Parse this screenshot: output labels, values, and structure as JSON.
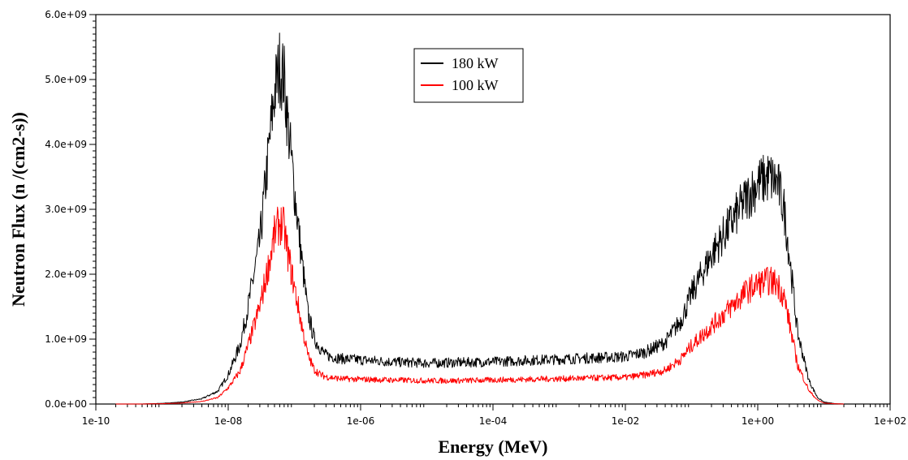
{
  "chart_data": {
    "type": "line",
    "title": "",
    "xlabel": "Energy (MeV)",
    "ylabel": "Neutron Flux (n /(cm2-s))",
    "x_scale": "log",
    "xlim": [
      1e-10,
      100
    ],
    "ylim": [
      0,
      6000000000
    ],
    "x_ticks": [
      {
        "value": 1e-10,
        "label": "1e-10"
      },
      {
        "value": 1e-08,
        "label": "1e-08"
      },
      {
        "value": 1e-06,
        "label": "1e-06"
      },
      {
        "value": 0.0001,
        "label": "1e-04"
      },
      {
        "value": 0.01,
        "label": "1e-02"
      },
      {
        "value": 1,
        "label": "1e+00"
      },
      {
        "value": 100,
        "label": "1e+02"
      }
    ],
    "y_ticks": [
      {
        "value": 0,
        "label": "0.0e+00"
      },
      {
        "value": 1000000000,
        "label": "1.0e+09"
      },
      {
        "value": 2000000000,
        "label": "2.0e+09"
      },
      {
        "value": 3000000000,
        "label": "3.0e+09"
      },
      {
        "value": 4000000000,
        "label": "4.0e+09"
      },
      {
        "value": 5000000000,
        "label": "5.0e+09"
      },
      {
        "value": 6000000000,
        "label": "6.0e+09"
      }
    ],
    "grid": false,
    "legend_position": "top-center",
    "series": [
      {
        "name": "180 kW",
        "color": "#000000",
        "x": [
          2e-10,
          5e-10,
          1e-09,
          2e-09,
          4e-09,
          7e-09,
          1e-08,
          1.5e-08,
          2e-08,
          3e-08,
          4e-08,
          5e-08,
          6e-08,
          7e-08,
          8e-08,
          1e-07,
          1.3e-07,
          1.6e-07,
          2e-07,
          2.5e-07,
          3e-07,
          5e-07,
          1e-06,
          3e-06,
          1e-05,
          3e-05,
          0.0001,
          0.0003,
          0.001,
          0.003,
          0.01,
          0.02,
          0.04,
          0.07,
          0.1,
          0.2,
          0.4,
          0.7,
          1,
          1.5,
          2,
          2.5,
          3,
          4,
          6,
          8,
          10,
          15,
          20
        ],
        "y": [
          0,
          0,
          10000000,
          30000000,
          80000000,
          200000000,
          450000000,
          900000000,
          1500000000,
          2500000000,
          3800000000,
          4800000000,
          5200000000,
          5000000000,
          4300000000,
          3300000000,
          2200000000,
          1400000000,
          1000000000,
          850000000,
          750000000,
          700000000,
          680000000,
          650000000,
          630000000,
          640000000,
          650000000,
          670000000,
          690000000,
          710000000,
          730000000,
          800000000,
          950000000,
          1300000000,
          1700000000,
          2300000000,
          2800000000,
          3200000000,
          3400000000,
          3500000000,
          3400000000,
          3000000000,
          2300000000,
          1100000000,
          350000000,
          100000000,
          30000000,
          5000000,
          0
        ]
      },
      {
        "name": "100 kW",
        "color": "#ff0000",
        "x": [
          2e-10,
          5e-10,
          1e-09,
          2e-09,
          4e-09,
          7e-09,
          1e-08,
          1.5e-08,
          2e-08,
          3e-08,
          4e-08,
          5e-08,
          6e-08,
          7e-08,
          8e-08,
          1e-07,
          1.3e-07,
          1.6e-07,
          2e-07,
          2.5e-07,
          3e-07,
          5e-07,
          1e-06,
          3e-06,
          1e-05,
          3e-05,
          0.0001,
          0.0003,
          0.001,
          0.003,
          0.01,
          0.02,
          0.04,
          0.07,
          0.1,
          0.2,
          0.4,
          0.7,
          1,
          1.5,
          2,
          2.5,
          3,
          4,
          6,
          8,
          10,
          15,
          20
        ],
        "y": [
          0,
          0,
          5000000,
          15000000,
          40000000,
          100000000,
          250000000,
          500000000,
          900000000,
          1500000000,
          2100000000,
          2600000000,
          2800000000,
          2700000000,
          2300000000,
          1800000000,
          1200000000,
          750000000,
          530000000,
          450000000,
          420000000,
          390000000,
          380000000,
          370000000,
          360000000,
          360000000,
          370000000,
          380000000,
          390000000,
          400000000,
          410000000,
          450000000,
          520000000,
          700000000,
          900000000,
          1200000000,
          1500000000,
          1750000000,
          1850000000,
          1900000000,
          1850000000,
          1650000000,
          1250000000,
          600000000,
          200000000,
          60000000,
          15000000,
          3000000,
          0
        ]
      }
    ]
  }
}
